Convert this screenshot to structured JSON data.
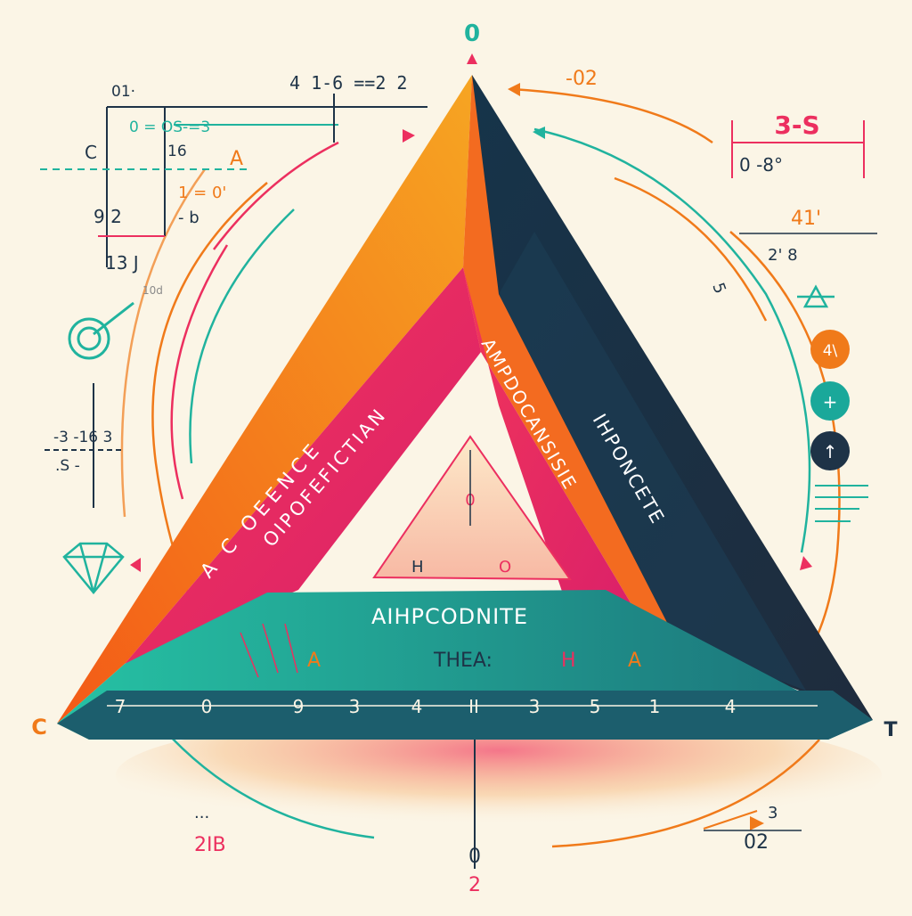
{
  "vertices": {
    "top": "0",
    "left": "C",
    "right": "T",
    "bottom_a": "0",
    "bottom_b": "2"
  },
  "faces": {
    "left_outer": "A C OEENCE",
    "left_inner": "OIPOFEFICTIAN",
    "center_a": "AMPDOCANSISIE",
    "right": "IHPONCETE"
  },
  "base": {
    "title": "AIHPCODNITE",
    "subtitle": "THEA:",
    "marks": [
      "A",
      "H",
      "A"
    ],
    "scale": [
      "7",
      "0",
      "9",
      "3",
      "4",
      "II",
      "3",
      "5",
      "1",
      "4"
    ]
  },
  "inner_triangle": {
    "top": "0",
    "left": "H",
    "right": "O"
  },
  "annotations": {
    "top_formula": "4 1-6 ==2 2",
    "top_left_a": "01·",
    "top_left_b": "0 = OS-=3",
    "c_label": "C",
    "c_value": "16",
    "a_label": "A",
    "fraction_a": "1 = 0'",
    "fraction_b": "- b",
    "nine_two": "9 2",
    "thirteen": "13 J",
    "tiny": "10d",
    "left_mid_a": "-3 -16 3",
    "left_mid_b": ".S -",
    "top_right": "-02",
    "box_title": "3-S",
    "box_value": "0 -8°",
    "angle": "41'",
    "pair": "2' 8",
    "rot_5": "5",
    "bottom_left": "2IB",
    "bottom_left_dots": "...",
    "bottom_right_a": "3",
    "bottom_right_b": "02"
  },
  "badges": [
    {
      "label": "4\\",
      "color": "#f07a1a"
    },
    {
      "label": "+",
      "color": "#1aa89a"
    },
    {
      "label": "↑",
      "color": "#1e3347"
    }
  ],
  "colors": {
    "orange": "#f57d18",
    "pink": "#ec2f5f",
    "navy": "#1e3347",
    "teal": "#20b39e",
    "background": "#fbf5e6"
  }
}
